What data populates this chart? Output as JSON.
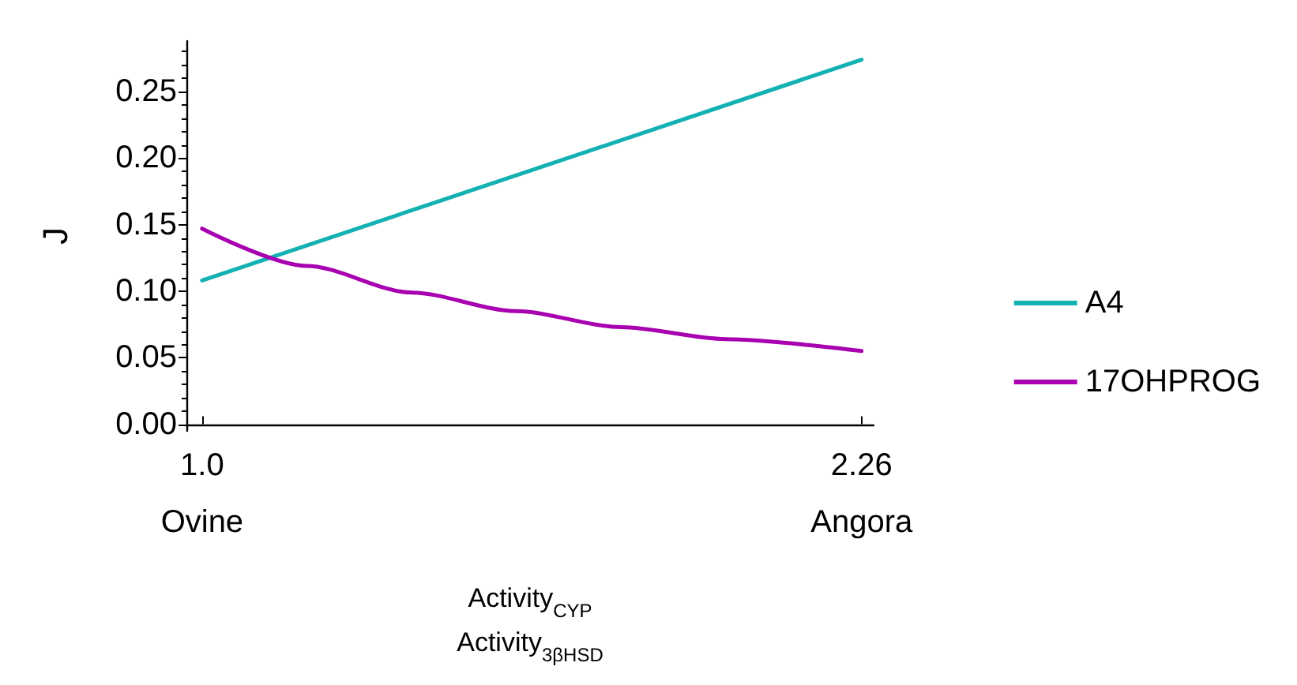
{
  "chart_data": {
    "type": "line",
    "xlabel": "Activity$_{CYP}$\nActivity$_{3βHSD}$",
    "ylabel": "J",
    "xlim": [
      0.97,
      2.283
    ],
    "xticks": [
      {
        "value": 1.0,
        "label": "1.0\nOvine"
      },
      {
        "value": 2.26,
        "label": "2.26\nAngora"
      }
    ],
    "ylim": [
      -0.005,
      0.288
    ],
    "yticks": [
      {
        "value": 0,
        "label": "0.00"
      },
      {
        "value": 0.05,
        "label": "0.05"
      },
      {
        "value": 0.1,
        "label": "0.10"
      },
      {
        "value": 0.15,
        "label": "0.15"
      },
      {
        "value": 0.2,
        "label": "0.20"
      },
      {
        "value": 0.25,
        "label": "0.25"
      }
    ],
    "series": [
      {
        "name": "A4",
        "color": "#14b1b3",
        "x": [
          1.0,
          2.26
        ],
        "values": [
          0.108,
          0.274
        ]
      },
      {
        "name": "17OHPROG",
        "color": "#a800b0",
        "x": [
          1.0,
          1.2,
          1.4,
          1.6,
          1.8,
          2.0,
          2.26
        ],
        "values": [
          0.147,
          0.119,
          0.099,
          0.085,
          0.073,
          0.064,
          0.055
        ]
      }
    ],
    "legend": "right",
    "grid": false,
    "marker": "none",
    "line_style": "solid"
  }
}
